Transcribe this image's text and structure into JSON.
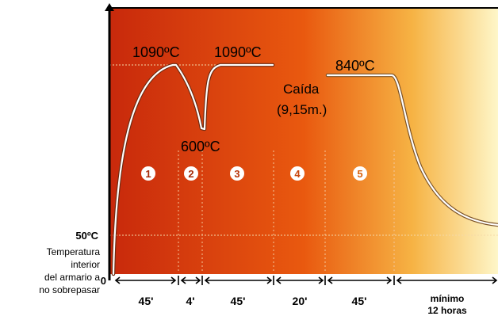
{
  "chart_data": {
    "type": "line",
    "peak_labels": [
      {
        "text": "1090ºC"
      },
      {
        "text": "1090ºC"
      },
      {
        "text": "600ºC"
      },
      {
        "text": "840ºC"
      }
    ],
    "drop_label": {
      "line1": "Caída",
      "line2": "(9,15m.)"
    },
    "phase_markers": [
      "1",
      "2",
      "3",
      "4",
      "5"
    ],
    "y_marker_label": "50ºC",
    "y_origin_label": "0",
    "y_side_text": [
      "Temperatura",
      "interior",
      "del armario a",
      "no sobrepasar"
    ],
    "durations": [
      "45'",
      "4'",
      "45'",
      "20'",
      "45'"
    ],
    "final_duration": [
      "mínimo",
      "12 horas"
    ],
    "colors": {
      "gradient_start": "#c8290c",
      "gradient_mid": "#e9590f",
      "gradient_end": "#fef6c8",
      "curve": "#ffffff",
      "axis": "#000000"
    }
  }
}
